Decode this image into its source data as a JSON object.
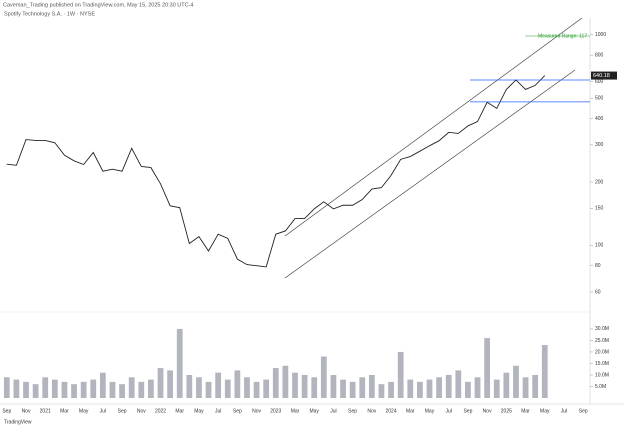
{
  "chart_data": [
    {
      "type": "line",
      "source": "Caveman_Trading published on TradingView.com, May 15, 2025 20:30 UTC-4",
      "title": "Spotify Technology S.A. · 1W · NYSE",
      "annotation": "Measured Range: 117",
      "color": "#222222",
      "log": true,
      "ylim": [
        55,
        1150
      ],
      "yticks": [
        60,
        80,
        100,
        150,
        200,
        300,
        400,
        500,
        600,
        800,
        1000
      ],
      "hlines": [
        610,
        480
      ],
      "values": [
        243,
        240,
        318,
        315,
        315,
        307,
        268,
        252,
        242,
        276,
        225,
        230,
        225,
        289,
        237,
        234,
        196,
        154,
        151,
        102,
        110,
        94,
        113,
        108,
        86,
        81,
        80,
        79,
        113,
        117,
        134,
        134,
        149,
        161,
        149,
        155,
        155,
        165,
        185,
        188,
        215,
        256,
        264,
        280,
        297,
        314,
        344,
        340,
        369,
        387,
        478,
        447,
        550,
        610,
        550,
        575,
        640.18,
        null,
        null,
        null,
        null
      ]
    },
    {
      "type": "bar",
      "color": "#b2b5be",
      "footer": "TradingView",
      "categories": [
        "Sep",
        null,
        "Nov",
        null,
        "2021",
        null,
        "Mar",
        null,
        "May",
        null,
        "Jul",
        null,
        "Sep",
        null,
        "Nov",
        null,
        "2022",
        null,
        "Mar",
        null,
        "May",
        null,
        "Jul",
        null,
        "Sep",
        null,
        "Nov",
        null,
        "2023",
        null,
        "Mar",
        null,
        "May",
        null,
        "Jul",
        null,
        "Sep",
        null,
        "Nov",
        null,
        "2024",
        null,
        "Mar",
        null,
        "May",
        null,
        "Jul",
        null,
        "Sep",
        null,
        "Nov",
        null,
        "2025",
        null,
        "Mar",
        null,
        "May",
        null,
        "Jul",
        null,
        "Sep"
      ],
      "ylim": [
        0,
        33
      ],
      "yticks": [
        {
          "value": 5,
          "label": "5.0M"
        },
        {
          "value": 10,
          "label": "10.0M"
        },
        {
          "value": 15,
          "label": "15.0M"
        },
        {
          "value": 20,
          "label": "20.0M"
        },
        {
          "value": 25,
          "label": "25.0M"
        },
        {
          "value": 30,
          "label": "30.0M"
        }
      ],
      "values": [
        9,
        8,
        7,
        6,
        9,
        8,
        7,
        6,
        7,
        8,
        11,
        7,
        6,
        9,
        7,
        8,
        13,
        12,
        30,
        10,
        9,
        7,
        11,
        8,
        12,
        9,
        7,
        8,
        13,
        14,
        11,
        10,
        9,
        18,
        10,
        8,
        7,
        9,
        10,
        6,
        7,
        20,
        8,
        7,
        8,
        9,
        10,
        12,
        7,
        9,
        26,
        8,
        11,
        14,
        9,
        10,
        23,
        null,
        null,
        null,
        null
      ]
    }
  ]
}
